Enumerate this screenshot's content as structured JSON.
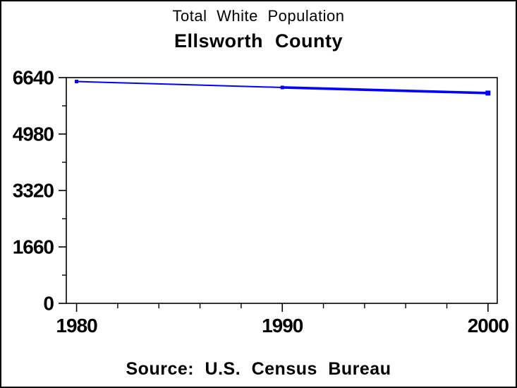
{
  "chart_data": {
    "type": "line",
    "title": "Total White Population",
    "subtitle": "Ellsworth County",
    "source": "Source: U.S. Census Bureau",
    "x": [
      1980,
      1990,
      2000
    ],
    "series": [
      {
        "name": "Total White Population",
        "values": [
          6525,
          6350,
          6185
        ]
      }
    ],
    "xlabel": "",
    "ylabel": "",
    "x_ticks_major": [
      1980,
      1990,
      2000
    ],
    "x_tick_minor_step_years": 2,
    "y_ticks_major": [
      0,
      1660,
      3320,
      4980,
      6640
    ],
    "y_ticks_minor": [
      830,
      2490,
      4150,
      5810
    ],
    "xlim": [
      1979.5,
      2000.45
    ],
    "ylim": [
      0,
      6640
    ],
    "grid": "off",
    "legend": "none",
    "line_color": "#0000ff",
    "axis_color": "#000000",
    "text_color": "#000000",
    "background_color": "#ffffff",
    "border_color": "#000000"
  }
}
